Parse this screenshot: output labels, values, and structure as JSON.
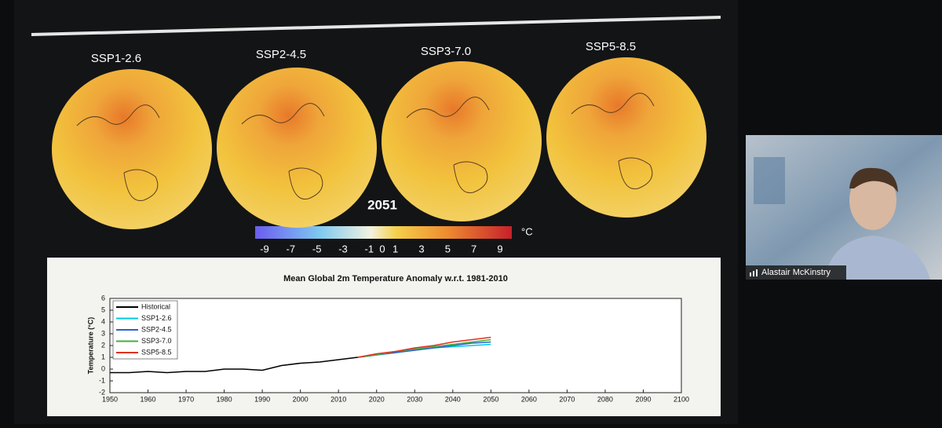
{
  "slide": {
    "scenarios": [
      "SSP1-2.6",
      "SSP2-4.5",
      "SSP3-7.0",
      "SSP5-8.5"
    ],
    "year": "2051",
    "colorbar": {
      "ticks": [
        -9,
        -7,
        -5,
        -3,
        -1,
        0,
        1,
        3,
        5,
        7,
        9
      ],
      "unit": "°C"
    }
  },
  "chart_data": {
    "type": "line",
    "title": "Mean Global 2m Temperature Anomaly w.r.t. 1981-2010",
    "y_label": "Temperature (°C)",
    "xlim": [
      1950,
      2100
    ],
    "xticks": [
      1950,
      1960,
      1970,
      1980,
      1990,
      2000,
      2010,
      2020,
      2030,
      2040,
      2050,
      2060,
      2070,
      2080,
      2090,
      2100
    ],
    "ylim": [
      -2,
      6
    ],
    "yticks": [
      -2,
      -1,
      0,
      1,
      2,
      3,
      4,
      5,
      6
    ],
    "legend": "upper left",
    "series": [
      {
        "name": "Historical",
        "color": "#000000",
        "x": [
          1950,
          1955,
          1960,
          1965,
          1970,
          1975,
          1980,
          1985,
          1990,
          1995,
          2000,
          2005,
          2010,
          2015
        ],
        "values": [
          -0.3,
          -0.3,
          -0.2,
          -0.3,
          -0.2,
          -0.2,
          0,
          0,
          -0.1,
          0.3,
          0.5,
          0.6,
          0.8,
          1.0
        ]
      },
      {
        "name": "SSP1-2.6",
        "color": "#00c8e0",
        "x": [
          2015,
          2020,
          2025,
          2030,
          2035,
          2040,
          2045,
          2050
        ],
        "values": [
          1.0,
          1.2,
          1.4,
          1.6,
          1.8,
          1.9,
          2.0,
          2.1
        ]
      },
      {
        "name": "SSP2-4.5",
        "color": "#3060d0",
        "x": [
          2015,
          2020,
          2025,
          2030,
          2035,
          2040,
          2045,
          2050
        ],
        "values": [
          1.0,
          1.2,
          1.4,
          1.6,
          1.8,
          2.0,
          2.2,
          2.3
        ]
      },
      {
        "name": "SSP3-7.0",
        "color": "#40b040",
        "x": [
          2015,
          2020,
          2025,
          2030,
          2035,
          2040,
          2045,
          2050
        ],
        "values": [
          1.0,
          1.2,
          1.5,
          1.7,
          1.9,
          2.1,
          2.3,
          2.5
        ]
      },
      {
        "name": "SSP5-8.5",
        "color": "#e03020",
        "x": [
          2015,
          2020,
          2025,
          2030,
          2035,
          2040,
          2045,
          2050
        ],
        "values": [
          1.0,
          1.3,
          1.5,
          1.8,
          2.0,
          2.3,
          2.5,
          2.7
        ]
      }
    ]
  },
  "participant": {
    "name": "Alastair McKinstry"
  }
}
